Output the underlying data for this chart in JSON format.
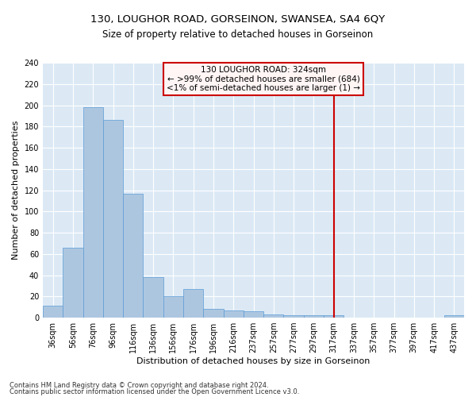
{
  "title": "130, LOUGHOR ROAD, GORSEINON, SWANSEA, SA4 6QY",
  "subtitle": "Size of property relative to detached houses in Gorseinon",
  "xlabel": "Distribution of detached houses by size in Gorseinon",
  "ylabel": "Number of detached properties",
  "categories": [
    "36sqm",
    "56sqm",
    "76sqm",
    "96sqm",
    "116sqm",
    "136sqm",
    "156sqm",
    "176sqm",
    "196sqm",
    "216sqm",
    "237sqm",
    "257sqm",
    "277sqm",
    "297sqm",
    "317sqm",
    "337sqm",
    "357sqm",
    "377sqm",
    "397sqm",
    "417sqm",
    "437sqm"
  ],
  "values": [
    11,
    66,
    198,
    186,
    117,
    38,
    20,
    27,
    8,
    7,
    6,
    3,
    2,
    2,
    2,
    0,
    0,
    0,
    0,
    0,
    2
  ],
  "bar_color": "#adc6e0",
  "bar_edge_color": "#5b9bd5",
  "vline_x_index": 14,
  "vline_color": "#cc0000",
  "annotation_title": "130 LOUGHOR ROAD: 324sqm",
  "annotation_line1": "← >99% of detached houses are smaller (684)",
  "annotation_line2": "<1% of semi-detached houses are larger (1) →",
  "annotation_box_edge": "#cc0000",
  "ylim": [
    0,
    240
  ],
  "yticks": [
    0,
    20,
    40,
    60,
    80,
    100,
    120,
    140,
    160,
    180,
    200,
    220,
    240
  ],
  "background_color": "#dce9f5",
  "footer_line1": "Contains HM Land Registry data © Crown copyright and database right 2024.",
  "footer_line2": "Contains public sector information licensed under the Open Government Licence v3.0.",
  "title_fontsize": 9.5,
  "subtitle_fontsize": 8.5,
  "xlabel_fontsize": 8,
  "ylabel_fontsize": 8,
  "tick_fontsize": 7,
  "annotation_fontsize": 7.5,
  "footer_fontsize": 6
}
